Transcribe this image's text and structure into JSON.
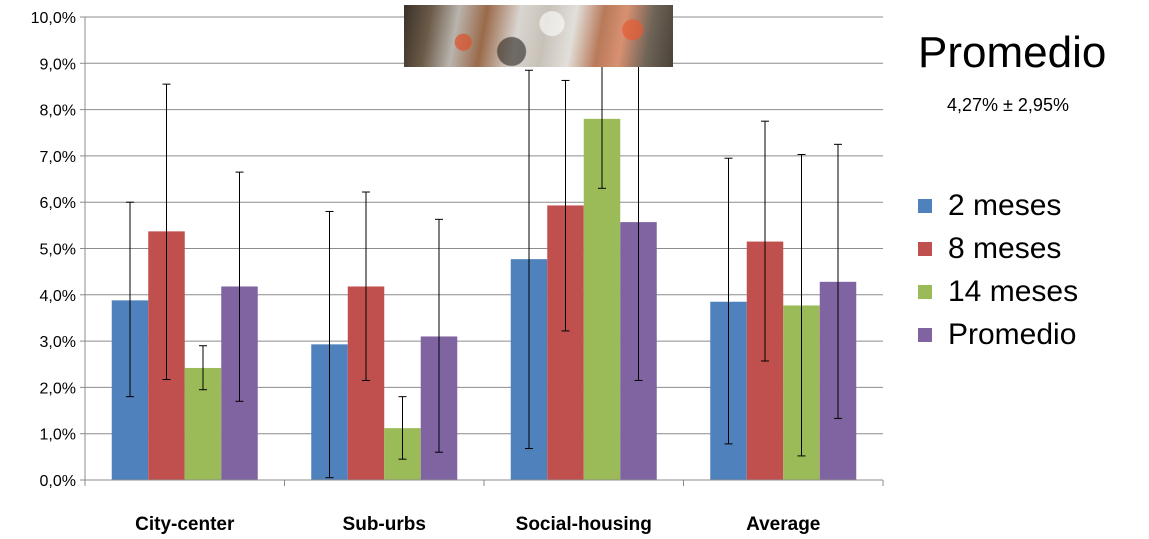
{
  "chart_data": {
    "type": "bar",
    "categories": [
      "City-center",
      "Sub-urbs",
      "Social-housing",
      "Average"
    ],
    "series": [
      {
        "name": "2 meses",
        "color": "#4f81bd",
        "values": [
          3.88,
          2.93,
          4.77,
          3.85
        ],
        "err_low": [
          1.8,
          0.05,
          0.68,
          0.78
        ],
        "err_high": [
          6.0,
          5.8,
          8.85,
          6.95
        ]
      },
      {
        "name": "8 meses",
        "color": "#c0504d",
        "values": [
          5.37,
          4.18,
          5.93,
          5.15
        ],
        "err_low": [
          2.17,
          2.15,
          3.22,
          2.57
        ],
        "err_high": [
          8.55,
          6.22,
          8.63,
          7.75
        ]
      },
      {
        "name": "14 meses",
        "color": "#9bbb59",
        "values": [
          2.42,
          1.12,
          7.8,
          3.77
        ],
        "err_low": [
          1.95,
          0.45,
          6.3,
          0.52
        ],
        "err_high": [
          2.9,
          1.8,
          9.3,
          7.03
        ]
      },
      {
        "name": "Promedio",
        "color": "#8064a2",
        "values": [
          4.18,
          3.1,
          5.57,
          4.28
        ],
        "err_low": [
          1.7,
          0.6,
          2.15,
          1.33
        ],
        "err_high": [
          6.65,
          5.63,
          9.3,
          7.25
        ]
      }
    ],
    "ylim": [
      0,
      10
    ],
    "yticks": [
      "0,0%",
      "1,0%",
      "2,0%",
      "3,0%",
      "4,0%",
      "5,0%",
      "6,0%",
      "7,0%",
      "8,0%",
      "9,0%",
      "10,0%"
    ],
    "grid": true,
    "legend_position": "right"
  },
  "side_panel": {
    "title": "Promedio",
    "subtitle": "4,27% ± 2,95%"
  }
}
